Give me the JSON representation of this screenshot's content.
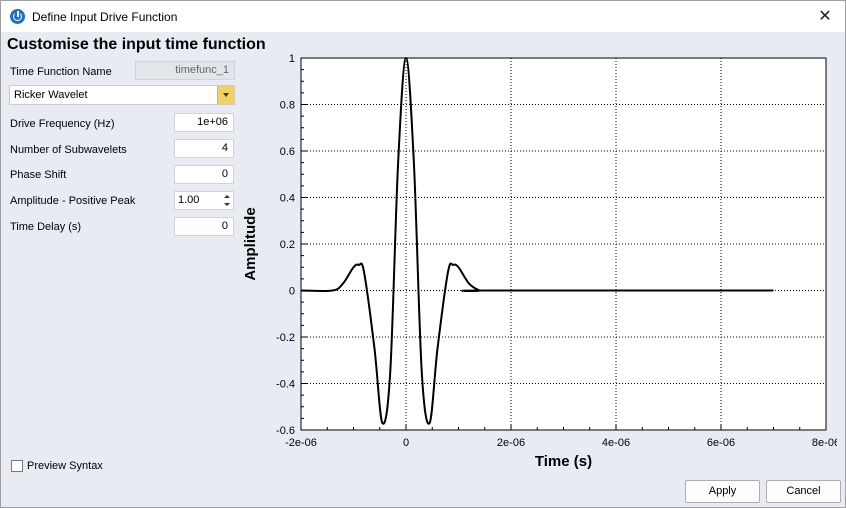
{
  "window": {
    "title": "Define Input Drive Function"
  },
  "heading": "Customise the input time function",
  "form": {
    "time_function_name_label": "Time Function Name",
    "time_function_name_value": "timefunc_1",
    "function_type": "Ricker Wavelet",
    "drive_frequency_label": "Drive Frequency (Hz)",
    "drive_frequency_value": "1e+06",
    "subwavelets_label": "Number of Subwavelets",
    "subwavelets_value": "4",
    "phase_shift_label": "Phase Shift",
    "phase_shift_value": "0",
    "amplitude_label": "Amplitude - Positive Peak",
    "amplitude_value": "1.00",
    "time_delay_label": "Time Delay (s)",
    "time_delay_value": "0"
  },
  "preview_syntax_label": "Preview Syntax",
  "buttons": {
    "apply": "Apply",
    "cancel": "Cancel"
  },
  "chart_data": {
    "type": "line",
    "xlabel": "Time (s)",
    "ylabel": "Amplitude",
    "xlim": [
      -2e-06,
      8e-06
    ],
    "ylim": [
      -0.6,
      1.0
    ],
    "x_ticks": [
      "-2e-06",
      "0",
      "2e-06",
      "4e-06",
      "6e-06",
      "8e-06"
    ],
    "y_ticks": [
      "1",
      "0.8",
      "0.6",
      "0.4",
      "0.2",
      "0",
      "-0.2",
      "-0.4",
      "-0.6"
    ],
    "grid": true,
    "series": [
      {
        "x": [
          -2e-06,
          -1.4e-06,
          -1.2e-06,
          -1e-06,
          -9e-07,
          -8e-07,
          -6e-07,
          -4.5e-07,
          -3e-07,
          -1.5e-07,
          0,
          1.5e-07,
          3e-07,
          4.5e-07,
          6e-07,
          8e-07,
          9e-07,
          1e-06,
          1.2e-06,
          1.4e-06,
          1.5e-06,
          7e-06
        ],
        "y": [
          0,
          0,
          0.03,
          0.1,
          0.11,
          0.08,
          -0.25,
          -0.57,
          -0.35,
          0.55,
          1.0,
          0.55,
          -0.35,
          -0.57,
          -0.25,
          0.08,
          0.11,
          0.1,
          0.03,
          0,
          0,
          0
        ]
      }
    ]
  }
}
